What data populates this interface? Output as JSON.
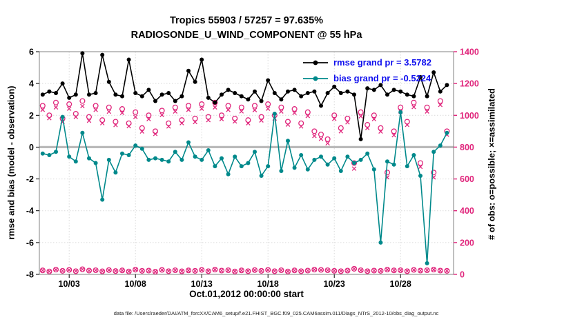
{
  "page": {
    "title1": "Tropics 55903 / 57257 = 97.635%",
    "title2": "RADIOSONDE_U_WIND_COMPONENT @ 55 hPa",
    "xlabel": "Oct.01,2012 00:00:00 start",
    "ylabel_left": "rmse and bias (model - observation)",
    "ylabel_right": "# of obs: o=possible; ×=assimilated",
    "caption": "data file: /Users/raeder/DAI/ATM_forcXX/CAM6_setup/f.e21.FHIST_BGC.f09_025.CAM6assim.011/Diags_NTrS_2012-10/obs_diag_output.nc",
    "legend": [
      {
        "label": "rmse grand pr = 3.5782",
        "color": "#000000"
      },
      {
        "label": "bias grand pr = -0.5224",
        "color": "#00898b"
      }
    ]
  },
  "chart_data": {
    "type": "line",
    "title": "Tropics 55903 / 57257 = 97.635% — RADIOSONDE_U_WIND_COMPONENT @ 55 hPa",
    "xlabel": "Oct.01,2012 00:00:00 start",
    "ylabel_left": "rmse and bias (model - observation)",
    "ylabel_right": "# of obs: o=possible; ×=assimilated",
    "grid": true,
    "legend_position": "top-right",
    "stats": {
      "region": "Tropics",
      "n_assimilated": 55903,
      "n_possible": 57257,
      "pct_assimilated": 97.635,
      "rmse_grand": 3.5782,
      "bias_grand": -0.5224,
      "level": "55 hPa",
      "start": "Oct.01,2012 00:00:00"
    },
    "colors": {
      "obs": "#e0267c",
      "bias": "#00898b",
      "rmse": "#000000",
      "zero_line": "#b9b9b9"
    },
    "xlim": [
      0.75,
      32
    ],
    "yleft": {
      "min": -8,
      "max": 6,
      "ticks": [
        -8,
        -6,
        -4,
        -2,
        0,
        2,
        4,
        6
      ]
    },
    "yright": {
      "min": 0,
      "max": 1400,
      "ticks": [
        0,
        200,
        400,
        600,
        800,
        1000,
        1200,
        1400
      ]
    },
    "xticks": {
      "positions": [
        3,
        8,
        13,
        18,
        23,
        28
      ],
      "labels": [
        "10/03",
        "10/08",
        "10/13",
        "10/18",
        "10/23",
        "10/28"
      ]
    },
    "x": [
      1,
      1.5,
      2,
      2.5,
      3,
      3.5,
      4,
      4.5,
      5,
      5.5,
      6,
      6.5,
      7,
      7.5,
      8,
      8.5,
      9,
      9.5,
      10,
      10.5,
      11,
      11.5,
      12,
      12.5,
      13,
      13.5,
      14,
      14.5,
      15,
      15.5,
      16,
      16.5,
      17,
      17.5,
      18,
      18.5,
      19,
      19.5,
      20,
      20.5,
      21,
      21.5,
      22,
      22.5,
      23,
      23.5,
      24,
      24.5,
      25,
      25.5,
      26,
      26.5,
      27,
      27.5,
      28,
      28.5,
      29,
      29.5,
      30,
      30.5,
      31,
      31.5
    ],
    "series": [
      {
        "name": "n-possible",
        "axis": "right",
        "marker": "open-circle",
        "line": false,
        "color": "#e0267c",
        "values": [
          1060,
          1000,
          1080,
          980,
          1070,
          1010,
          1090,
          990,
          1060,
          970,
          1050,
          960,
          1040,
          950,
          1020,
          920,
          1000,
          900,
          1030,
          950,
          1050,
          970,
          1060,
          980,
          1070,
          990,
          1080,
          1000,
          1060,
          980,
          1050,
          970,
          1060,
          990,
          1070,
          1000,
          1050,
          960,
          1040,
          950,
          1020,
          900,
          880,
          850,
          1000,
          920,
          980,
          700,
          1020,
          940,
          1000,
          920,
          640,
          900,
          1050,
          960,
          1080,
          700,
          1050,
          640,
          1090,
          900
        ]
      },
      {
        "name": "n-assimilated",
        "axis": "right",
        "marker": "x",
        "line": false,
        "color": "#e0267c",
        "values": [
          1035,
          982,
          1050,
          958,
          1042,
          990,
          1058,
          966,
          1034,
          951,
          1023,
          939,
          1015,
          932,
          990,
          898,
          976,
          883,
          1002,
          930,
          1024,
          951,
          1035,
          958,
          1042,
          970,
          1050,
          976,
          1034,
          962,
          1025,
          950,
          1033,
          968,
          1042,
          980,
          1024,
          942,
          1015,
          930,
          996,
          870,
          852,
          824,
          978,
          900,
          956,
          665,
          994,
          920,
          976,
          898,
          610,
          875,
          1024,
          940,
          1052,
          676,
          1024,
          610,
          1066,
          878
        ]
      },
      {
        "name": "n-possible-minus-assimilated",
        "axis": "right",
        "marker": "open-circle-x",
        "line": false,
        "color": "#e0267c",
        "values": [
          25,
          18,
          30,
          22,
          28,
          20,
          32,
          24,
          26,
          19,
          27,
          21,
          25,
          18,
          30,
          22,
          24,
          17,
          28,
          20,
          26,
          19,
          25,
          22,
          28,
          20,
          30,
          24,
          26,
          18,
          25,
          20,
          27,
          22,
          28,
          20,
          26,
          18,
          25,
          20,
          24,
          30,
          28,
          26,
          22,
          20,
          24,
          35,
          26,
          20,
          24,
          22,
          30,
          25,
          26,
          20,
          28,
          24,
          26,
          30,
          24,
          22
        ]
      },
      {
        "name": "bias",
        "axis": "left",
        "marker": "dot",
        "line": true,
        "color": "#00898b",
        "values": [
          -0.4,
          -0.5,
          -0.3,
          1.9,
          -0.6,
          -0.9,
          0.9,
          -0.7,
          -1.0,
          -3.3,
          -0.8,
          -1.6,
          -0.4,
          -0.5,
          0.1,
          -0.1,
          -0.8,
          -0.7,
          -0.8,
          -0.9,
          -0.3,
          -0.8,
          0.3,
          -0.6,
          -0.8,
          -0.2,
          -1.2,
          -0.7,
          -1.7,
          -0.6,
          -1.2,
          -1.0,
          -0.3,
          -1.8,
          -1.2,
          2.1,
          -1.5,
          0.4,
          -1.3,
          -0.5,
          -1.4,
          -0.8,
          -0.6,
          -1.1,
          -0.7,
          -1.5,
          -0.6,
          -1.0,
          -0.8,
          -0.4,
          -1.4,
          -6.0,
          -0.9,
          -1.1,
          2.2,
          -1.2,
          -0.5,
          -1.8,
          -7.3,
          -0.3,
          0.1,
          0.9
        ]
      },
      {
        "name": "rmse",
        "axis": "left",
        "marker": "dot",
        "line": true,
        "color": "#000000",
        "values": [
          3.3,
          3.5,
          3.4,
          4.0,
          3.1,
          3.3,
          5.9,
          3.3,
          3.4,
          5.8,
          4.1,
          3.3,
          3.2,
          5.5,
          3.4,
          3.2,
          3.6,
          2.9,
          3.3,
          3.4,
          2.9,
          3.2,
          4.8,
          4.1,
          5.5,
          3.1,
          2.8,
          3.3,
          3.6,
          3.4,
          3.2,
          3.0,
          3.5,
          2.9,
          4.2,
          3.4,
          3.0,
          3.5,
          3.6,
          3.2,
          3.4,
          3.5,
          2.6,
          3.4,
          3.8,
          3.4,
          3.5,
          3.3,
          0.5,
          3.7,
          3.6,
          3.9,
          3.3,
          3.6,
          3.5,
          3.3,
          3.2,
          4.4,
          3.2,
          4.7,
          3.5,
          3.9
        ]
      }
    ]
  }
}
